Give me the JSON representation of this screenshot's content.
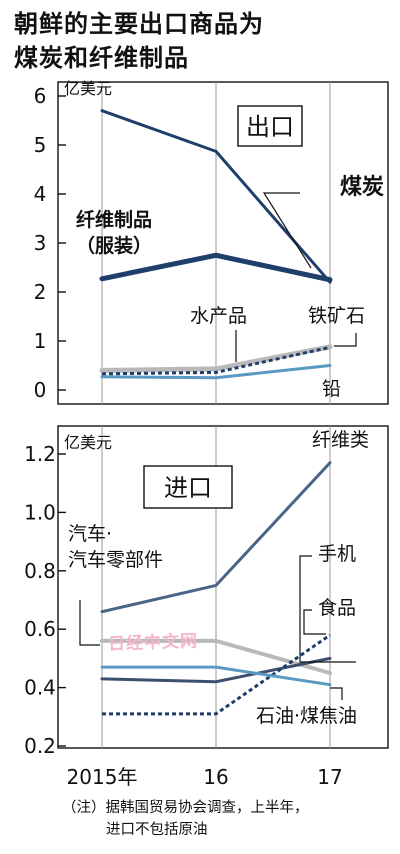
{
  "title_lines": [
    "朝鲜的主要出口商品为",
    "煤炭和纤维制品"
  ],
  "note_lines": [
    "（注）据韩国贸易协会调查，上半年，",
    "进口不包括原油"
  ],
  "watermark": "日经中文网",
  "chart_data": [
    {
      "type": "line",
      "panel_label": "出口",
      "unit": "亿美元",
      "ylim": [
        0,
        6
      ],
      "yticks": [
        "0",
        "1",
        "2",
        "3",
        "4",
        "5",
        "6"
      ],
      "categories": [
        "2015年",
        "16",
        "17"
      ],
      "series": [
        {
          "name": "煤炭",
          "values": [
            5.7,
            4.87,
            2.2
          ],
          "color": "#1f3e6b",
          "width": 3,
          "dash": false
        },
        {
          "name": "纤维制品\n（服装）",
          "values": [
            2.27,
            2.75,
            2.25
          ],
          "color": "#1f3e6b",
          "width": 5,
          "dash": false
        },
        {
          "name": "水产品",
          "values": [
            0.4,
            0.43,
            0.88
          ],
          "color": "#b9b9b9",
          "width": 5,
          "dash": false
        },
        {
          "name": "铁矿石",
          "values": [
            0.33,
            0.36,
            0.87
          ],
          "color": "#1f3e6b",
          "width": 3,
          "dash": true
        },
        {
          "name": "铅",
          "values": [
            0.27,
            0.25,
            0.5
          ],
          "color": "#5a99c2",
          "width": 3,
          "dash": false
        }
      ]
    },
    {
      "type": "line",
      "panel_label": "进口",
      "unit": "亿美元",
      "ylim": [
        0.2,
        1.2
      ],
      "yticks": [
        "0.2",
        "0.4",
        "0.6",
        "0.8",
        "1.0",
        "1.2"
      ],
      "categories": [
        "2015年",
        "16",
        "17"
      ],
      "series": [
        {
          "name": "纤维类",
          "values": [
            0.66,
            0.75,
            1.17
          ],
          "color": "#4a6488",
          "width": 3,
          "dash": false
        },
        {
          "name": "汽车·\n汽车零部件",
          "values": [
            0.56,
            0.56,
            0.45
          ],
          "color": "#b9b9b9",
          "width": 4,
          "dash": false
        },
        {
          "name": "手机",
          "values": [
            0.43,
            0.42,
            0.5
          ],
          "color": "#3d4f6e",
          "width": 3,
          "dash": false
        },
        {
          "name": "食品",
          "values": [
            0.31,
            0.31,
            0.58
          ],
          "color": "#1f3e6b",
          "width": 3,
          "dash": true
        },
        {
          "name": "石油·煤焦油",
          "values": [
            0.47,
            0.47,
            0.41
          ],
          "color": "#5a99c2",
          "width": 3,
          "dash": false
        }
      ]
    }
  ]
}
